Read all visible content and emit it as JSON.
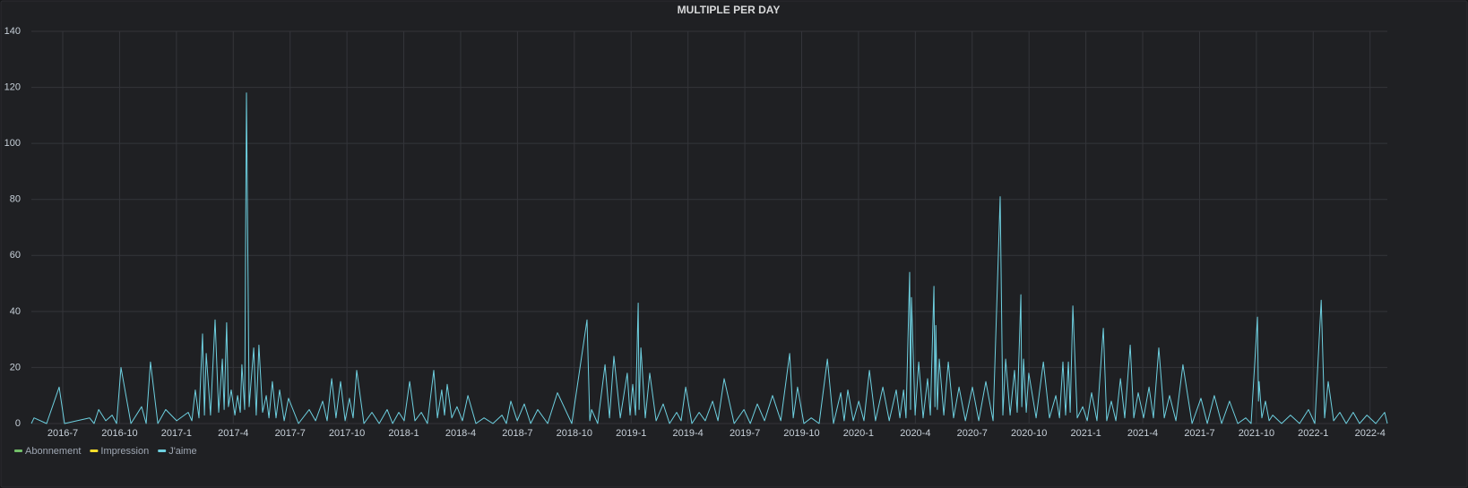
{
  "chart_data": {
    "type": "line",
    "title": "MULTIPLE PER DAY",
    "x": [
      2016.362,
      2016.374,
      2016.429,
      2016.484,
      2016.508,
      2016.618,
      2016.638,
      2016.658,
      2016.689,
      2016.717,
      2016.737,
      2016.756,
      2016.8,
      2016.847,
      2016.867,
      2016.886,
      2016.918,
      2016.953,
      2017.001,
      2017.052,
      2017.068,
      2017.083,
      2017.099,
      2017.115,
      2017.123,
      2017.131,
      2017.15,
      2017.17,
      2017.186,
      2017.202,
      2017.21,
      2017.221,
      2017.229,
      2017.241,
      2017.257,
      2017.269,
      2017.281,
      2017.288,
      2017.3,
      2017.308,
      2017.32,
      2017.34,
      2017.351,
      2017.363,
      2017.379,
      2017.395,
      2017.407,
      2017.422,
      2017.438,
      2017.454,
      2017.474,
      2017.493,
      2017.537,
      2017.584,
      2017.612,
      2017.643,
      2017.663,
      2017.683,
      2017.702,
      2017.722,
      2017.742,
      2017.761,
      2017.777,
      2017.793,
      2017.825,
      2017.86,
      2017.892,
      2017.927,
      2017.951,
      2017.978,
      2018.002,
      2018.026,
      2018.049,
      2018.077,
      2018.104,
      2018.132,
      2018.148,
      2018.167,
      2018.179,
      2018.191,
      2018.211,
      2018.234,
      2018.258,
      2018.282,
      2018.317,
      2018.353,
      2018.392,
      2018.432,
      2018.451,
      2018.471,
      2018.499,
      2018.53,
      2018.558,
      2018.589,
      2018.633,
      2018.676,
      2018.739,
      2018.806,
      2018.818,
      2018.826,
      2018.853,
      2018.885,
      2018.905,
      2018.924,
      2018.952,
      2018.983,
      2018.995,
      2019.007,
      2019.019,
      2019.031,
      2019.035,
      2019.043,
      2019.062,
      2019.082,
      2019.11,
      2019.141,
      2019.169,
      2019.2,
      2019.22,
      2019.24,
      2019.267,
      2019.299,
      2019.326,
      2019.358,
      2019.382,
      2019.409,
      2019.453,
      2019.496,
      2019.524,
      2019.555,
      2019.587,
      2019.622,
      2019.658,
      2019.697,
      2019.713,
      2019.732,
      2019.76,
      2019.792,
      2019.827,
      2019.863,
      2019.89,
      2019.922,
      2019.937,
      2019.953,
      2019.977,
      2020.001,
      2020.024,
      2020.048,
      2020.075,
      2020.107,
      2020.135,
      2020.166,
      2020.182,
      2020.198,
      2020.209,
      2020.225,
      2020.229,
      2020.233,
      2020.249,
      2020.265,
      2020.284,
      2020.304,
      2020.316,
      2020.332,
      2020.336,
      2020.34,
      2020.347,
      2020.355,
      2020.375,
      2020.395,
      2020.418,
      2020.442,
      2020.47,
      2020.501,
      2020.529,
      2020.56,
      2020.592,
      2020.623,
      2020.635,
      2020.647,
      2020.667,
      2020.686,
      2020.698,
      2020.714,
      2020.718,
      2020.726,
      2020.738,
      2020.749,
      2020.781,
      2020.813,
      2020.84,
      2020.868,
      2020.884,
      2020.899,
      2020.911,
      2020.923,
      2020.931,
      2020.943,
      2020.962,
      2020.986,
      2021.006,
      2021.025,
      2021.049,
      2021.077,
      2021.092,
      2021.112,
      2021.132,
      2021.152,
      2021.171,
      2021.195,
      2021.211,
      2021.23,
      2021.254,
      2021.278,
      2021.297,
      2021.321,
      2021.345,
      2021.368,
      2021.396,
      2021.427,
      2021.467,
      2021.506,
      2021.534,
      2021.565,
      2021.597,
      2021.632,
      2021.668,
      2021.703,
      2021.727,
      2021.755,
      2021.759,
      2021.762,
      2021.774,
      2021.79,
      2021.806,
      2021.822,
      2021.861,
      2021.9,
      2021.94,
      2021.979,
      2022.007,
      2022.035,
      2022.05,
      2022.066,
      2022.09,
      2022.117,
      2022.145,
      2022.176,
      2022.204,
      2022.236,
      2022.275,
      2022.314,
      2022.326
    ],
    "series": [
      {
        "name": "Abonnement",
        "color": "#73bf69"
      },
      {
        "name": "Impression",
        "color": "#fade2a"
      },
      {
        "name": "J'aime",
        "color": "#6ed0e0",
        "values": [
          0,
          2,
          0,
          13,
          0,
          2,
          0,
          5,
          1,
          3,
          0,
          20,
          0,
          6,
          0,
          22,
          0,
          5,
          1,
          4,
          1,
          12,
          2,
          32,
          3,
          25,
          3,
          37,
          4,
          23,
          5,
          36,
          6,
          12,
          3,
          10,
          4,
          21,
          5,
          118,
          6,
          27,
          3,
          28,
          4,
          10,
          2,
          15,
          2,
          12,
          1,
          9,
          0,
          5,
          1,
          8,
          1,
          16,
          2,
          15,
          1,
          9,
          2,
          19,
          0,
          4,
          0,
          5,
          0,
          4,
          1,
          15,
          1,
          4,
          0,
          19,
          2,
          12,
          3,
          14,
          2,
          6,
          1,
          10,
          0,
          2,
          0,
          3,
          0,
          8,
          1,
          7,
          0,
          5,
          0,
          11,
          0,
          37,
          1,
          5,
          0,
          21,
          2,
          24,
          2,
          18,
          3,
          14,
          3,
          43,
          5,
          27,
          2,
          18,
          1,
          7,
          0,
          4,
          1,
          13,
          0,
          4,
          1,
          8,
          1,
          16,
          0,
          5,
          0,
          7,
          1,
          10,
          1,
          25,
          2,
          13,
          0,
          2,
          0,
          23,
          0,
          11,
          1,
          12,
          1,
          8,
          1,
          19,
          1,
          13,
          1,
          12,
          2,
          12,
          2,
          54,
          5,
          45,
          3,
          22,
          2,
          16,
          3,
          49,
          6,
          35,
          5,
          23,
          3,
          22,
          2,
          13,
          1,
          13,
          1,
          15,
          1,
          81,
          3,
          23,
          3,
          19,
          4,
          46,
          6,
          23,
          4,
          18,
          2,
          22,
          2,
          10,
          2,
          22,
          3,
          22,
          4,
          42,
          2,
          6,
          1,
          11,
          1,
          34,
          1,
          8,
          1,
          16,
          2,
          28,
          2,
          11,
          2,
          13,
          2,
          27,
          2,
          10,
          1,
          21,
          0,
          9,
          0,
          10,
          0,
          8,
          0,
          2,
          0,
          38,
          8,
          15,
          2,
          8,
          1,
          3,
          0,
          3,
          0,
          5,
          0,
          44,
          2,
          15,
          1,
          4,
          0,
          4,
          0,
          3,
          0,
          4,
          0
        ]
      }
    ],
    "xlim": [
      2016.362,
      2022.326
    ],
    "xticks": [
      {
        "value": 2016.5,
        "label": "2016-7"
      },
      {
        "value": 2016.75,
        "label": "2016-10"
      },
      {
        "value": 2017.0,
        "label": "2017-1"
      },
      {
        "value": 2017.25,
        "label": "2017-4"
      },
      {
        "value": 2017.5,
        "label": "2017-7"
      },
      {
        "value": 2017.75,
        "label": "2017-10"
      },
      {
        "value": 2018.0,
        "label": "2018-1"
      },
      {
        "value": 2018.25,
        "label": "2018-4"
      },
      {
        "value": 2018.5,
        "label": "2018-7"
      },
      {
        "value": 2018.75,
        "label": "2018-10"
      },
      {
        "value": 2019.0,
        "label": "2019-1"
      },
      {
        "value": 2019.25,
        "label": "2019-4"
      },
      {
        "value": 2019.5,
        "label": "2019-7"
      },
      {
        "value": 2019.75,
        "label": "2019-10"
      },
      {
        "value": 2020.0,
        "label": "2020-1"
      },
      {
        "value": 2020.25,
        "label": "2020-4"
      },
      {
        "value": 2020.5,
        "label": "2020-7"
      },
      {
        "value": 2020.75,
        "label": "2020-10"
      },
      {
        "value": 2021.0,
        "label": "2021-1"
      },
      {
        "value": 2021.25,
        "label": "2021-4"
      },
      {
        "value": 2021.5,
        "label": "2021-7"
      },
      {
        "value": 2021.75,
        "label": "2021-10"
      },
      {
        "value": 2022.0,
        "label": "2022-1"
      },
      {
        "value": 2022.25,
        "label": "2022-4"
      }
    ],
    "ylim": [
      0,
      140
    ],
    "yticks": [
      0,
      20,
      40,
      60,
      80,
      100,
      120,
      140
    ],
    "grid": true
  }
}
